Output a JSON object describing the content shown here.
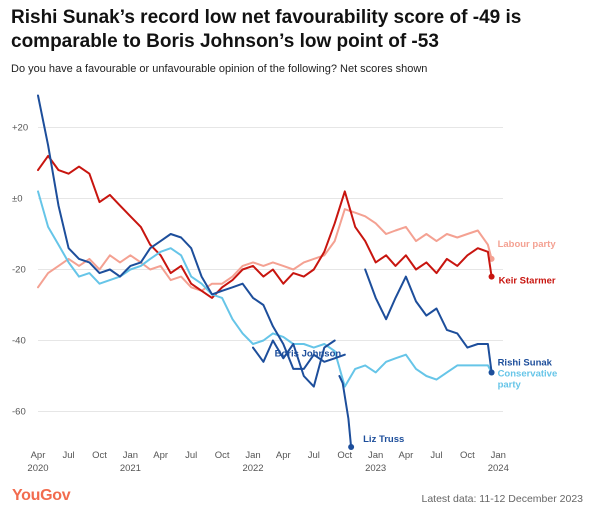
{
  "title": "Rishi Sunak’s record low net favourability score of -49 is comparable to Boris Johnson’s low point of -53",
  "subtitle": "Do you have a favourable or unfavourable opinion of the following? Net scores shown",
  "footer": {
    "logo": "YouGov",
    "latest_data": "Latest data: 11-12 December 2023"
  },
  "chart_data": {
    "type": "line",
    "xlim": [
      "2020-04-01",
      "2024-01-15"
    ],
    "ylim": [
      -70,
      30
    ],
    "y_ticks": [
      {
        "value": 20,
        "label": "+20"
      },
      {
        "value": 0,
        "label": "±0"
      },
      {
        "value": -20,
        "label": "-20"
      },
      {
        "value": -40,
        "label": "-40"
      },
      {
        "value": -60,
        "label": "-60"
      }
    ],
    "x_ticks": [
      {
        "date": "2020-04-01",
        "label": "Apr",
        "year": "2020"
      },
      {
        "date": "2020-07-01",
        "label": "Jul",
        "year": ""
      },
      {
        "date": "2020-10-01",
        "label": "Oct",
        "year": ""
      },
      {
        "date": "2021-01-01",
        "label": "Jan",
        "year": "2021"
      },
      {
        "date": "2021-04-01",
        "label": "Apr",
        "year": ""
      },
      {
        "date": "2021-07-01",
        "label": "Jul",
        "year": ""
      },
      {
        "date": "2021-10-01",
        "label": "Oct",
        "year": ""
      },
      {
        "date": "2022-01-01",
        "label": "Jan",
        "year": "2022"
      },
      {
        "date": "2022-04-01",
        "label": "Apr",
        "year": ""
      },
      {
        "date": "2022-07-01",
        "label": "Jul",
        "year": ""
      },
      {
        "date": "2022-10-01",
        "label": "Oct",
        "year": ""
      },
      {
        "date": "2023-01-01",
        "label": "Jan",
        "year": "2023"
      },
      {
        "date": "2023-04-01",
        "label": "Apr",
        "year": ""
      },
      {
        "date": "2023-07-01",
        "label": "Jul",
        "year": ""
      },
      {
        "date": "2023-10-01",
        "label": "Oct",
        "year": ""
      },
      {
        "date": "2024-01-01",
        "label": "Jan",
        "year": "2024"
      }
    ],
    "series": [
      {
        "name": "Labour party",
        "color": "#f4a192",
        "label_anchor": "end",
        "points": [
          [
            "2020-04-01",
            -25
          ],
          [
            "2020-05-01",
            -21
          ],
          [
            "2020-06-01",
            -19
          ],
          [
            "2020-07-01",
            -17
          ],
          [
            "2020-08-01",
            -19
          ],
          [
            "2020-09-01",
            -17
          ],
          [
            "2020-10-01",
            -20
          ],
          [
            "2020-11-01",
            -16
          ],
          [
            "2020-12-01",
            -18
          ],
          [
            "2021-01-01",
            -16
          ],
          [
            "2021-02-01",
            -18
          ],
          [
            "2021-03-01",
            -20
          ],
          [
            "2021-04-01",
            -19
          ],
          [
            "2021-05-01",
            -23
          ],
          [
            "2021-06-01",
            -22
          ],
          [
            "2021-07-01",
            -25
          ],
          [
            "2021-08-01",
            -26
          ],
          [
            "2021-09-01",
            -24
          ],
          [
            "2021-10-01",
            -24
          ],
          [
            "2021-11-01",
            -22
          ],
          [
            "2021-12-01",
            -19
          ],
          [
            "2022-01-01",
            -18
          ],
          [
            "2022-02-01",
            -19
          ],
          [
            "2022-03-01",
            -18
          ],
          [
            "2022-04-01",
            -19
          ],
          [
            "2022-05-01",
            -20
          ],
          [
            "2022-06-01",
            -18
          ],
          [
            "2022-07-01",
            -17
          ],
          [
            "2022-08-01",
            -16
          ],
          [
            "2022-09-01",
            -12
          ],
          [
            "2022-10-01",
            -3
          ],
          [
            "2022-11-01",
            -4
          ],
          [
            "2022-12-01",
            -5
          ],
          [
            "2023-01-01",
            -7
          ],
          [
            "2023-02-01",
            -10
          ],
          [
            "2023-03-01",
            -9
          ],
          [
            "2023-04-01",
            -8
          ],
          [
            "2023-05-01",
            -12
          ],
          [
            "2023-06-01",
            -10
          ],
          [
            "2023-07-01",
            -12
          ],
          [
            "2023-08-01",
            -10
          ],
          [
            "2023-09-01",
            -11
          ],
          [
            "2023-10-01",
            -10
          ],
          [
            "2023-11-01",
            -9
          ],
          [
            "2023-12-01",
            -13
          ],
          [
            "2023-12-12",
            -17
          ]
        ]
      },
      {
        "name": "Keir Starmer",
        "color": "#c8150f",
        "label_anchor": "end",
        "points": [
          [
            "2020-04-01",
            8
          ],
          [
            "2020-05-01",
            12
          ],
          [
            "2020-06-01",
            8
          ],
          [
            "2020-07-01",
            7
          ],
          [
            "2020-08-01",
            9
          ],
          [
            "2020-09-01",
            7
          ],
          [
            "2020-10-01",
            -1
          ],
          [
            "2020-11-01",
            1
          ],
          [
            "2020-12-01",
            -2
          ],
          [
            "2021-01-01",
            -5
          ],
          [
            "2021-02-01",
            -8
          ],
          [
            "2021-03-01",
            -13
          ],
          [
            "2021-04-01",
            -16
          ],
          [
            "2021-05-01",
            -21
          ],
          [
            "2021-06-01",
            -19
          ],
          [
            "2021-07-01",
            -24
          ],
          [
            "2021-08-01",
            -26
          ],
          [
            "2021-09-01",
            -28
          ],
          [
            "2021-10-01",
            -25
          ],
          [
            "2021-11-01",
            -23
          ],
          [
            "2021-12-01",
            -20
          ],
          [
            "2022-01-01",
            -19
          ],
          [
            "2022-02-01",
            -22
          ],
          [
            "2022-03-01",
            -20
          ],
          [
            "2022-04-01",
            -24
          ],
          [
            "2022-05-01",
            -21
          ],
          [
            "2022-06-01",
            -22
          ],
          [
            "2022-07-01",
            -20
          ],
          [
            "2022-08-01",
            -15
          ],
          [
            "2022-09-01",
            -7
          ],
          [
            "2022-10-01",
            2
          ],
          [
            "2022-11-01",
            -8
          ],
          [
            "2022-12-01",
            -12
          ],
          [
            "2023-01-01",
            -18
          ],
          [
            "2023-02-01",
            -16
          ],
          [
            "2023-03-01",
            -19
          ],
          [
            "2023-04-01",
            -16
          ],
          [
            "2023-05-01",
            -20
          ],
          [
            "2023-06-01",
            -18
          ],
          [
            "2023-07-01",
            -21
          ],
          [
            "2023-08-01",
            -17
          ],
          [
            "2023-09-01",
            -19
          ],
          [
            "2023-10-01",
            -16
          ],
          [
            "2023-11-01",
            -14
          ],
          [
            "2023-12-01",
            -15
          ],
          [
            "2023-12-12",
            -22
          ]
        ]
      },
      {
        "name": "Conservative party",
        "color": "#66c5e8",
        "label_anchor": "end",
        "points": [
          [
            "2020-04-01",
            2
          ],
          [
            "2020-05-01",
            -8
          ],
          [
            "2020-06-01",
            -13
          ],
          [
            "2020-07-01",
            -18
          ],
          [
            "2020-08-01",
            -22
          ],
          [
            "2020-09-01",
            -21
          ],
          [
            "2020-10-01",
            -24
          ],
          [
            "2020-11-01",
            -23
          ],
          [
            "2020-12-01",
            -22
          ],
          [
            "2021-01-01",
            -20
          ],
          [
            "2021-02-01",
            -19
          ],
          [
            "2021-03-01",
            -17
          ],
          [
            "2021-04-01",
            -15
          ],
          [
            "2021-05-01",
            -14
          ],
          [
            "2021-06-01",
            -16
          ],
          [
            "2021-07-01",
            -22
          ],
          [
            "2021-08-01",
            -24
          ],
          [
            "2021-09-01",
            -27
          ],
          [
            "2021-10-01",
            -28
          ],
          [
            "2021-11-01",
            -34
          ],
          [
            "2021-12-01",
            -38
          ],
          [
            "2022-01-01",
            -41
          ],
          [
            "2022-02-01",
            -40
          ],
          [
            "2022-03-01",
            -38
          ],
          [
            "2022-04-01",
            -39
          ],
          [
            "2022-05-01",
            -41
          ],
          [
            "2022-06-01",
            -41
          ],
          [
            "2022-07-01",
            -42
          ],
          [
            "2022-08-01",
            -41
          ],
          [
            "2022-09-01",
            -43
          ],
          [
            "2022-10-01",
            -53
          ],
          [
            "2022-11-01",
            -48
          ],
          [
            "2022-12-01",
            -47
          ],
          [
            "2023-01-01",
            -49
          ],
          [
            "2023-02-01",
            -46
          ],
          [
            "2023-03-01",
            -45
          ],
          [
            "2023-04-01",
            -44
          ],
          [
            "2023-05-01",
            -48
          ],
          [
            "2023-06-01",
            -50
          ],
          [
            "2023-07-01",
            -51
          ],
          [
            "2023-08-01",
            -49
          ],
          [
            "2023-09-01",
            -47
          ],
          [
            "2023-10-01",
            -47
          ],
          [
            "2023-11-01",
            -47
          ],
          [
            "2023-12-01",
            -47
          ],
          [
            "2023-12-12",
            -49
          ]
        ]
      },
      {
        "name": "Rishi Sunak",
        "color": "#1d4e9b",
        "label_anchor": "end",
        "points": [
          [
            "2020-04-01",
            29
          ],
          [
            "2020-05-01",
            15
          ],
          [
            "2020-06-01",
            -2
          ],
          [
            "2020-07-01",
            -14
          ],
          [
            "2020-08-01",
            -17
          ],
          [
            "2020-09-01",
            -18
          ],
          [
            "2020-10-01",
            -21
          ],
          [
            "2020-11-01",
            -20
          ],
          [
            "2020-12-01",
            -22
          ],
          [
            "2021-01-01",
            -19
          ],
          [
            "2021-02-01",
            -18
          ],
          [
            "2021-03-01",
            -14
          ],
          [
            "2021-04-01",
            -12
          ],
          [
            "2021-05-01",
            -10
          ],
          [
            "2021-06-01",
            -11
          ],
          [
            "2021-07-01",
            -14
          ],
          [
            "2021-08-01",
            -22
          ],
          [
            "2021-09-01",
            -27
          ],
          [
            "2021-10-01",
            -26
          ],
          [
            "2021-11-01",
            -25
          ],
          [
            "2021-12-01",
            -24
          ],
          [
            "2022-01-01",
            -28
          ],
          [
            "2022-02-01",
            -30
          ],
          [
            "2022-03-01",
            -36
          ],
          [
            "2022-04-01",
            -41
          ],
          [
            "2022-05-01",
            -48
          ],
          [
            "2022-06-01",
            -48
          ],
          [
            "2022-07-01",
            -44
          ],
          [
            "2022-08-01",
            -46
          ],
          [
            "2022-09-01",
            -45
          ],
          [
            "2022-10-01",
            -44
          ],
          null,
          [
            "2022-12-01",
            -20
          ],
          [
            "2023-01-01",
            -28
          ],
          [
            "2023-02-01",
            -34
          ],
          [
            "2023-03-01",
            -28
          ],
          [
            "2023-04-01",
            -22
          ],
          [
            "2023-05-01",
            -29
          ],
          [
            "2023-06-01",
            -33
          ],
          [
            "2023-07-01",
            -31
          ],
          [
            "2023-08-01",
            -37
          ],
          [
            "2023-09-01",
            -38
          ],
          [
            "2023-10-01",
            -42
          ],
          [
            "2023-11-01",
            -41
          ],
          [
            "2023-12-01",
            -41
          ],
          [
            "2023-12-12",
            -49
          ]
        ]
      },
      {
        "name": "Boris Johnson",
        "color": "#1d4e9b",
        "label_anchor": "below",
        "points": [
          [
            "2022-01-01",
            -42
          ],
          [
            "2022-02-01",
            -46
          ],
          [
            "2022-03-01",
            -40
          ],
          [
            "2022-04-01",
            -45
          ],
          [
            "2022-05-01",
            -41
          ],
          [
            "2022-06-01",
            -50
          ],
          [
            "2022-07-01",
            -53
          ],
          [
            "2022-08-01",
            -42
          ],
          [
            "2022-09-01",
            -40
          ]
        ]
      },
      {
        "name": "Liz Truss",
        "color": "#1d4e9b",
        "label_anchor": "below",
        "points": [
          [
            "2022-09-15",
            -50
          ],
          [
            "2022-09-25",
            -52
          ],
          [
            "2022-10-05",
            -58
          ],
          [
            "2022-10-12",
            -62
          ],
          [
            "2022-10-20",
            -70
          ]
        ]
      }
    ],
    "series_labels": [
      {
        "name": "Labour party",
        "text": "Labour party",
        "color": "#f4a192"
      },
      {
        "name": "Keir Starmer",
        "text": "Keir Starmer",
        "color": "#c8150f"
      },
      {
        "name": "Rishi Sunak",
        "text": "Rishi Sunak",
        "color": "#1d4e9b"
      },
      {
        "name": "Conservative party",
        "text": "Conservative party",
        "color": "#66c5e8"
      },
      {
        "name": "Boris Johnson",
        "text": "Boris Johnson",
        "color": "#1d4e9b"
      },
      {
        "name": "Liz Truss",
        "text": "Liz Truss",
        "color": "#1d4e9b"
      }
    ],
    "grid": true,
    "legend": "direct-labels"
  }
}
